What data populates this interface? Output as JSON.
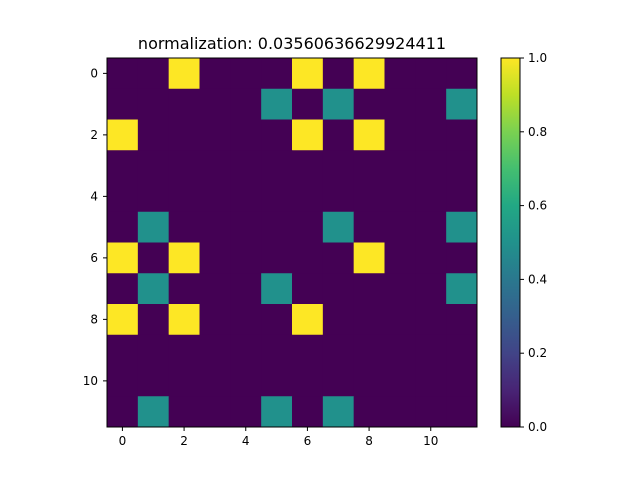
{
  "chart_data": {
    "type": "heatmap",
    "title": "normalization:  0.03560636629924411",
    "xlabel": "",
    "ylabel": "",
    "rows": 12,
    "cols": 12,
    "x_ticks": [
      0,
      2,
      4,
      6,
      8,
      10
    ],
    "y_ticks": [
      0,
      2,
      4,
      6,
      8,
      10
    ],
    "colorbar": {
      "min": 0.0,
      "max": 1.0,
      "ticks": [
        "0.0",
        "0.2",
        "0.4",
        "0.6",
        "0.8",
        "1.0"
      ],
      "colormap": "viridis"
    },
    "values": [
      [
        0,
        0,
        1,
        0,
        0,
        0,
        1,
        0,
        1,
        0,
        0,
        0
      ],
      [
        0,
        0,
        0,
        0,
        0,
        0.5,
        0,
        0.5,
        0,
        0,
        0,
        0.5
      ],
      [
        1,
        0,
        0,
        0,
        0,
        0,
        1,
        0,
        1,
        0,
        0,
        0
      ],
      [
        0,
        0,
        0,
        0,
        0,
        0,
        0,
        0,
        0,
        0,
        0,
        0
      ],
      [
        0,
        0,
        0,
        0,
        0,
        0,
        0,
        0,
        0,
        0,
        0,
        0
      ],
      [
        0,
        0.5,
        0,
        0,
        0,
        0,
        0,
        0.5,
        0,
        0,
        0,
        0.5
      ],
      [
        1,
        0,
        1,
        0,
        0,
        0,
        0,
        0,
        1,
        0,
        0,
        0
      ],
      [
        0,
        0.5,
        0,
        0,
        0,
        0.5,
        0,
        0,
        0,
        0,
        0,
        0.5
      ],
      [
        1,
        0,
        1,
        0,
        0,
        0,
        1,
        0,
        0,
        0,
        0,
        0
      ],
      [
        0,
        0,
        0,
        0,
        0,
        0,
        0,
        0,
        0,
        0,
        0,
        0
      ],
      [
        0,
        0,
        0,
        0,
        0,
        0,
        0,
        0,
        0,
        0,
        0,
        0
      ],
      [
        0,
        0.5,
        0,
        0,
        0,
        0.5,
        0,
        0.5,
        0,
        0,
        0,
        0
      ]
    ],
    "grid": false
  }
}
